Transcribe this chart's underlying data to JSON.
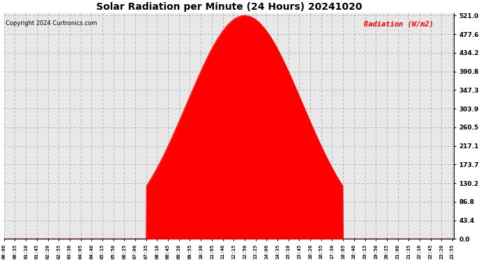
{
  "title": "Solar Radiation per Minute (24 Hours) 20241020",
  "copyright": "Copyright 2024 Curtronics.com",
  "ylabel": "Radiation (W/m2)",
  "ylabel_color": "red",
  "fill_color": "red",
  "line_color": "red",
  "baseline_color": "red",
  "grid_color": "#aaaaaa",
  "background_color": "white",
  "plot_bg_color": "#e8e8e8",
  "ymin": 0.0,
  "ymax": 521.0,
  "yticks": [
    0.0,
    43.4,
    86.8,
    130.2,
    173.7,
    217.1,
    260.5,
    303.9,
    347.3,
    390.8,
    434.2,
    477.6,
    521.0
  ],
  "sunrise_minute": 455,
  "sunset_minute": 1085,
  "peak_minute": 770,
  "peak_value": 521.0,
  "total_minutes": 1440,
  "tick_step": 35
}
